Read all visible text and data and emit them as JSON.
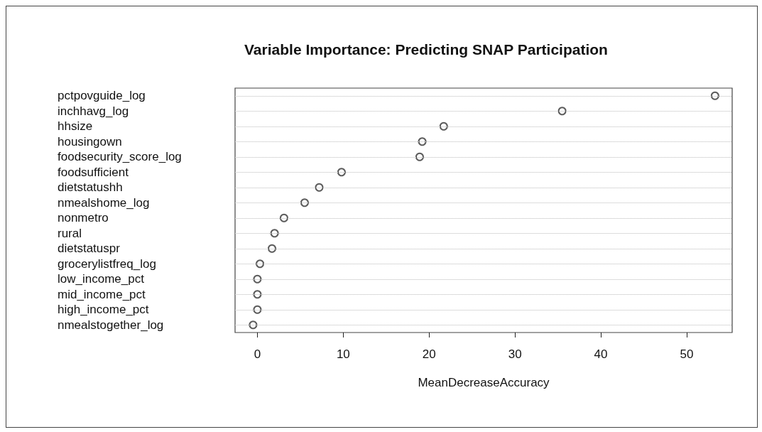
{
  "chart_data": {
    "type": "scatter",
    "title": "Variable Importance: Predicting SNAP Participation",
    "xlabel": "MeanDecreaseAccuracy",
    "categories": [
      "pctpovguide_log",
      "inchhavg_log",
      "hhsize",
      "housingown",
      "foodsecurity_score_log",
      "foodsufficient",
      "dietstatushh",
      "nmealshome_log",
      "nonmetro",
      "rural",
      "dietstatuspr",
      "grocerylistfreq_log",
      "low_income_pct",
      "mid_income_pct",
      "high_income_pct",
      "nmealstogether_log"
    ],
    "values": [
      53.3,
      35.5,
      21.7,
      19.2,
      18.9,
      9.8,
      7.2,
      5.5,
      3.1,
      2.0,
      1.7,
      0.3,
      0,
      0,
      0,
      -0.5
    ],
    "color": "#333333",
    "orientation": "horizontal",
    "marker": "circle",
    "grid": "y",
    "xlim": [
      -2.6,
      55.3
    ],
    "xticks": [
      0,
      10,
      20,
      30,
      40,
      50
    ]
  }
}
